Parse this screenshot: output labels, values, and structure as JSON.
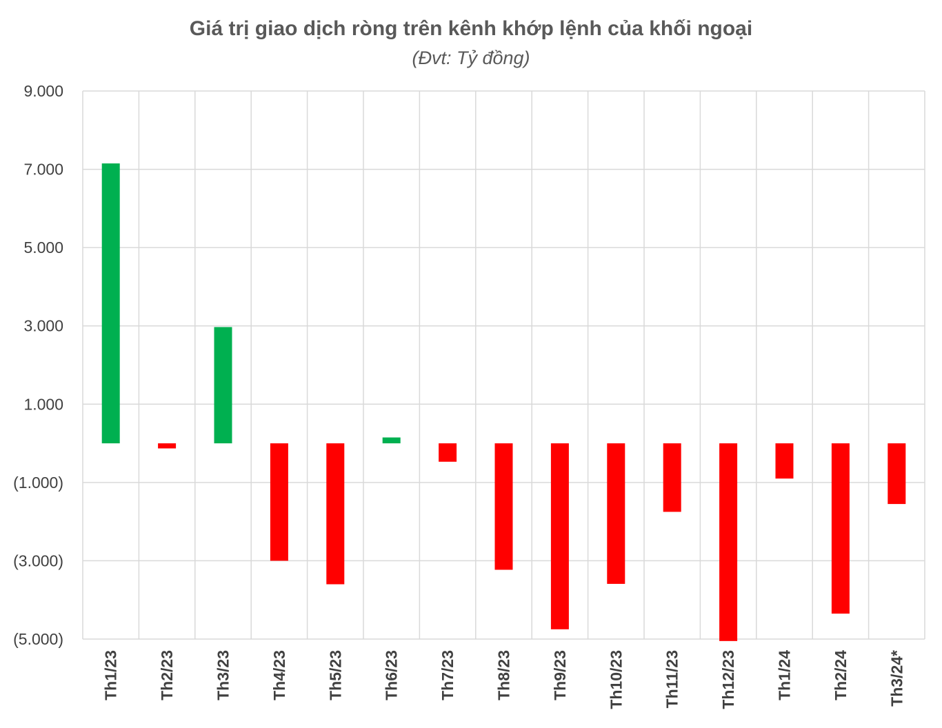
{
  "chart_data": {
    "type": "bar",
    "title": "Giá trị giao dịch ròng trên kênh khớp lệnh của khối ngoại",
    "subtitle": "(Đvt: Tỷ đồng)",
    "xlabel": "",
    "ylabel": "",
    "ylim": [
      -5000,
      9000
    ],
    "yticks": [
      9000,
      7000,
      5000,
      3000,
      1000,
      -1000,
      -3000,
      -5000
    ],
    "ytick_labels": [
      "9.000",
      "7.000",
      "5.000",
      "3.000",
      "1.000",
      "(1.000)",
      "(3.000)",
      "(5.000)"
    ],
    "categories": [
      "Th1/23",
      "Th2/23",
      "Th3/23",
      "Th4/23",
      "Th5/23",
      "Th6/23",
      "Th7/23",
      "Th8/23",
      "Th9/23",
      "Th10/23",
      "Th11/23",
      "Th12/23",
      "Th1/24",
      "Th2/24",
      "Th3/24*"
    ],
    "values": [
      7150,
      -130,
      2970,
      -3000,
      -3600,
      150,
      -470,
      -3230,
      -4750,
      -3590,
      -1750,
      -5050,
      -900,
      -4350,
      -1550
    ],
    "grid": true,
    "colors": {
      "positive": "#00b050",
      "negative": "#ff0000",
      "grid": "#d9d9d9"
    }
  }
}
